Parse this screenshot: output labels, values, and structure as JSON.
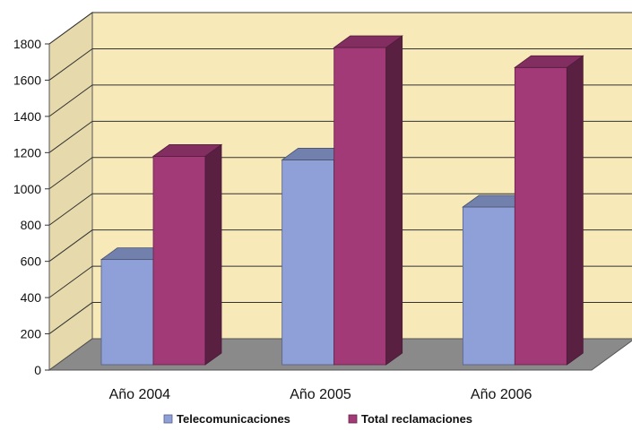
{
  "chart_data": {
    "type": "bar",
    "categories": [
      "Año 2004",
      "Año 2005",
      "Año 2006"
    ],
    "series": [
      {
        "name": "Telecomunicaciones",
        "values": [
          610,
          1160,
          900
        ],
        "color": "#8fa0d8"
      },
      {
        "name": "Total reclamaciones",
        "values": [
          1180,
          1780,
          1670
        ],
        "color": "#a33a78"
      }
    ],
    "ylim": [
      0,
      1800
    ],
    "yticks": [
      0,
      200,
      400,
      600,
      800,
      1000,
      1200,
      1400,
      1600,
      1800
    ],
    "grid": true,
    "legend": "bottom",
    "wall_color": "#f7e9b8",
    "floor_color": "#8a8a8a"
  }
}
